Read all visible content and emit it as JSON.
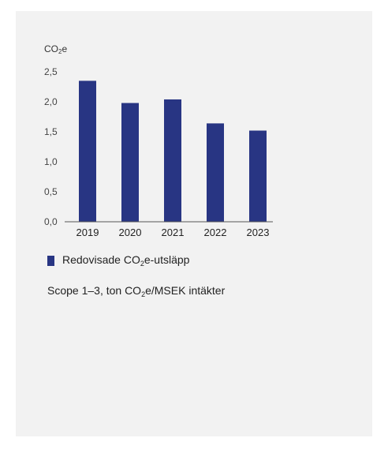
{
  "chart_data": {
    "type": "bar",
    "ylabel_main": "CO",
    "ylabel_sub": "2",
    "ylabel_tail": "e",
    "categories": [
      "2019",
      "2020",
      "2021",
      "2022",
      "2023"
    ],
    "series": [
      {
        "name": "Redovisade CO2e-utsläpp",
        "values": [
          2.35,
          1.98,
          2.04,
          1.64,
          1.52
        ]
      }
    ],
    "ylim": [
      0,
      2.5
    ],
    "yticks": [
      "0,0",
      "0,5",
      "1,0",
      "1,5",
      "2,0",
      "2,5"
    ],
    "yticks_values": [
      0,
      0.5,
      1.0,
      1.5,
      2.0,
      2.5
    ],
    "grid": false,
    "legend_position": "bottom-left",
    "bar_color": "#283583"
  },
  "legend": {
    "pre": "Redovisade CO",
    "sub": "2",
    "post": "e-utsläpp"
  },
  "caption": {
    "pre": "Scope 1–3, ton CO",
    "sub": "2",
    "post": "e/MSEK intäkter"
  }
}
